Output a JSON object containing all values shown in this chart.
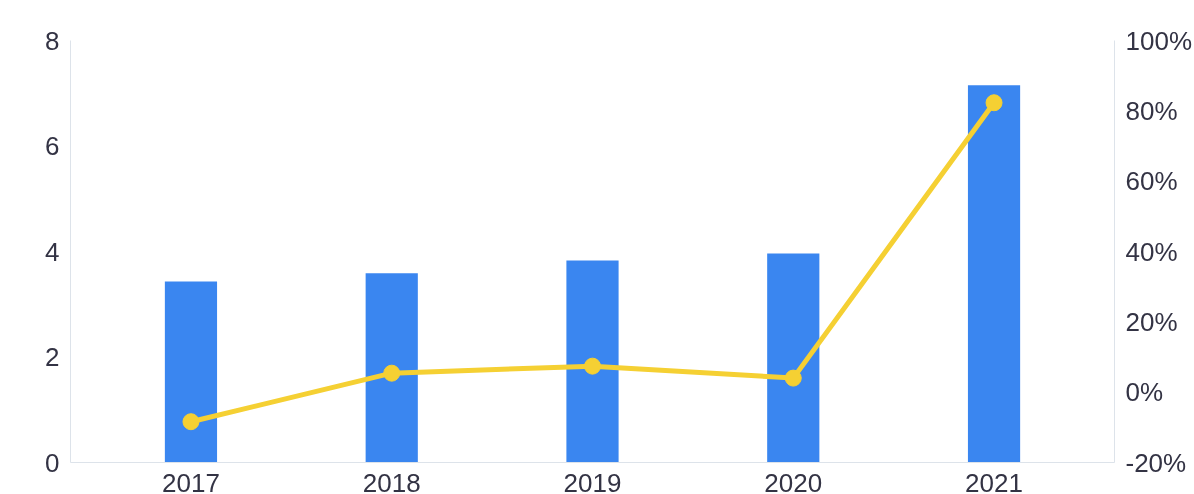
{
  "chart_data": {
    "type": "bar",
    "categories": [
      "2017",
      "2018",
      "2019",
      "2020",
      "2021"
    ],
    "series": [
      {
        "color": "#3a86f0",
        "values": [
          3.43,
          3.59,
          3.83,
          3.96,
          7.15
        ]
      },
      {
        "type": "line",
        "axis": "y2",
        "color": "#f5d033",
        "marker": "circle",
        "values": [
          -8.4,
          5.4,
          7.4,
          4.0,
          82.3
        ]
      }
    ],
    "ylim": [
      0,
      8
    ],
    "yticks": [
      0,
      2,
      4,
      6,
      8
    ],
    "y2lim": [
      -20,
      100
    ],
    "y2ticks": [
      {
        "value": -20,
        "label": "-20%"
      },
      {
        "value": 0,
        "label": "0%"
      },
      {
        "value": 20,
        "label": "20%"
      },
      {
        "value": 40,
        "label": "40%"
      },
      {
        "value": 60,
        "label": "60%"
      },
      {
        "value": 80,
        "label": "80%"
      },
      {
        "value": 100,
        "label": "100%"
      }
    ],
    "grid": false
  }
}
